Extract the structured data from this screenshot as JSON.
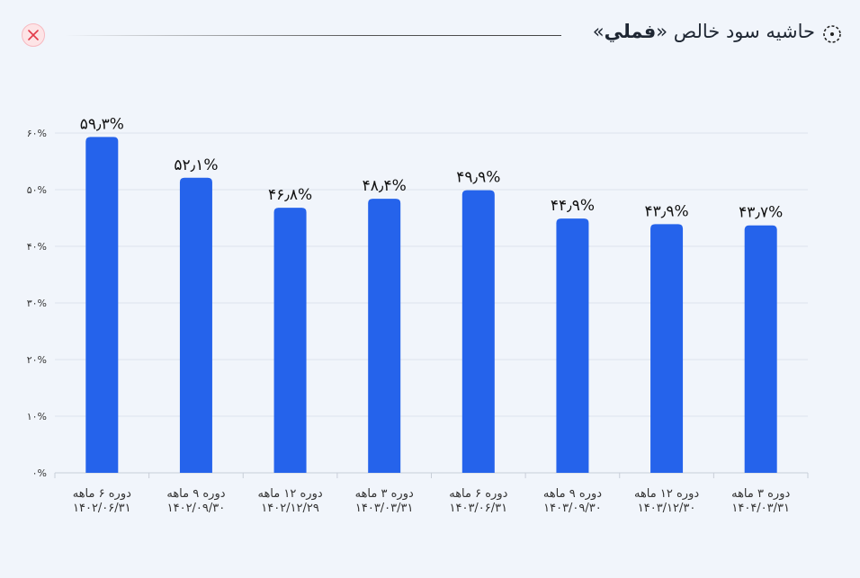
{
  "header": {
    "title_prefix": "حاشیه سود خالص «",
    "title_symbol": "فملي",
    "title_suffix": "»",
    "close_icon": "close-icon",
    "title_icon": "dotted-circle-icon"
  },
  "colors": {
    "bar": "#2563eb",
    "close": "#e23b4a"
  },
  "chart_data": {
    "type": "bar",
    "categories": [
      [
        "دوره ۶ ماهه",
        "۱۴۰۲/۰۶/۳۱"
      ],
      [
        "دوره ۹ ماهه",
        "۱۴۰۲/۰۹/۳۰"
      ],
      [
        "دوره ۱۲ ماهه",
        "۱۴۰۲/۱۲/۲۹"
      ],
      [
        "دوره ۳ ماهه",
        "۱۴۰۳/۰۳/۳۱"
      ],
      [
        "دوره ۶ ماهه",
        "۱۴۰۳/۰۶/۳۱"
      ],
      [
        "دوره ۹ ماهه",
        "۱۴۰۳/۰۹/۳۰"
      ],
      [
        "دوره ۱۲ ماهه",
        "۱۴۰۳/۱۲/۳۰"
      ],
      [
        "دوره ۳ ماهه",
        "۱۴۰۴/۰۳/۳۱"
      ]
    ],
    "values": [
      59.3,
      52.1,
      46.8,
      48.4,
      49.9,
      44.9,
      43.9,
      43.7
    ],
    "value_labels": [
      "۵۹٫۳%",
      "۵۲٫۱%",
      "۴۶٫۸%",
      "۴۸٫۴%",
      "۴۹٫۹%",
      "۴۴٫۹%",
      "۴۳٫۹%",
      "۴۳٫۷%"
    ],
    "yticks": [
      0,
      10,
      20,
      30,
      40,
      50,
      60
    ],
    "ytick_labels": [
      "۰%",
      "۱۰%",
      "۲۰%",
      "۳۰%",
      "۴۰%",
      "۵۰%",
      "۶۰%"
    ],
    "ylim": [
      0,
      60
    ],
    "grid": true,
    "title": "",
    "xlabel": "",
    "ylabel": ""
  }
}
